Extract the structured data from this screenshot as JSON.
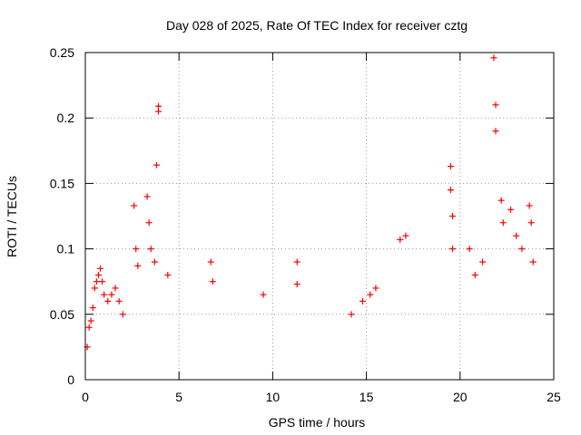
{
  "chart_data": {
    "type": "scatter",
    "title": "Day 028 of 2025, Rate Of TEC Index for receiver cztg",
    "xlabel": "GPS time / hours",
    "ylabel": "ROTI / TECUs",
    "xlim": [
      0,
      25
    ],
    "ylim": [
      0,
      0.25
    ],
    "x_ticks": [
      0,
      5,
      10,
      15,
      20,
      25
    ],
    "x_tick_labels": [
      "0",
      "5",
      "10",
      "15",
      "20",
      "25"
    ],
    "y_ticks": [
      0,
      0.05,
      0.1,
      0.15,
      0.2,
      0.25
    ],
    "y_tick_labels": [
      "0",
      "0.05",
      "0.1",
      "0.15",
      "0.2",
      "0.25"
    ],
    "grid": true,
    "marker": "+",
    "marker_color": "#ff0000",
    "series": [
      {
        "name": "ROTI",
        "points": [
          [
            0.1,
            0.025
          ],
          [
            0.2,
            0.04
          ],
          [
            0.3,
            0.045
          ],
          [
            0.4,
            0.055
          ],
          [
            0.5,
            0.07
          ],
          [
            0.6,
            0.075
          ],
          [
            0.7,
            0.08
          ],
          [
            0.8,
            0.085
          ],
          [
            0.9,
            0.075
          ],
          [
            1.0,
            0.065
          ],
          [
            1.2,
            0.06
          ],
          [
            1.4,
            0.065
          ],
          [
            1.6,
            0.07
          ],
          [
            1.8,
            0.06
          ],
          [
            2.0,
            0.05
          ],
          [
            2.6,
            0.133
          ],
          [
            2.7,
            0.1
          ],
          [
            2.8,
            0.087
          ],
          [
            3.3,
            0.14
          ],
          [
            3.4,
            0.12
          ],
          [
            3.5,
            0.1
          ],
          [
            3.7,
            0.09
          ],
          [
            3.8,
            0.164
          ],
          [
            3.9,
            0.209
          ],
          [
            3.9,
            0.205
          ],
          [
            4.4,
            0.08
          ],
          [
            6.7,
            0.09
          ],
          [
            6.8,
            0.075
          ],
          [
            9.5,
            0.065
          ],
          [
            11.3,
            0.09
          ],
          [
            11.3,
            0.073
          ],
          [
            14.2,
            0.05
          ],
          [
            14.8,
            0.06
          ],
          [
            15.2,
            0.065
          ],
          [
            15.5,
            0.07
          ],
          [
            16.8,
            0.107
          ],
          [
            17.1,
            0.11
          ],
          [
            19.5,
            0.163
          ],
          [
            19.5,
            0.145
          ],
          [
            19.6,
            0.125
          ],
          [
            19.6,
            0.1
          ],
          [
            20.5,
            0.1
          ],
          [
            20.8,
            0.08
          ],
          [
            21.2,
            0.09
          ],
          [
            21.8,
            0.246
          ],
          [
            21.9,
            0.21
          ],
          [
            21.9,
            0.19
          ],
          [
            22.2,
            0.137
          ],
          [
            22.3,
            0.12
          ],
          [
            22.7,
            0.13
          ],
          [
            23.0,
            0.11
          ],
          [
            23.3,
            0.1
          ],
          [
            23.7,
            0.133
          ],
          [
            23.8,
            0.12
          ],
          [
            23.9,
            0.09
          ]
        ]
      }
    ]
  }
}
